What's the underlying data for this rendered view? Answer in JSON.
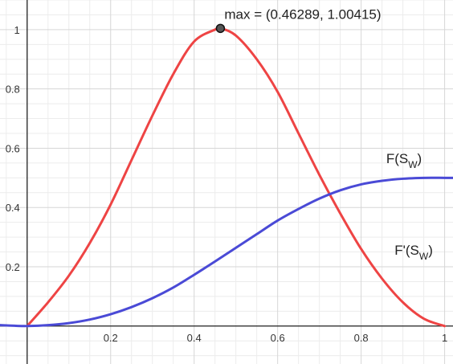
{
  "chart_data": {
    "type": "line",
    "xlim": [
      -0.065,
      1.02
    ],
    "ylim": [
      -0.128,
      1.1
    ],
    "grid": true,
    "x_ticks": [
      {
        "value": 0.2,
        "label": "0.2"
      },
      {
        "value": 0.4,
        "label": "0.4"
      },
      {
        "value": 0.6,
        "label": "0.6"
      },
      {
        "value": 0.8,
        "label": "0.8"
      },
      {
        "value": 1.0,
        "label": "1"
      }
    ],
    "y_ticks": [
      {
        "value": 0.2,
        "label": "0.2"
      },
      {
        "value": 0.4,
        "label": "0.4"
      },
      {
        "value": 0.6,
        "label": "0.6"
      },
      {
        "value": 0.8,
        "label": "0.8"
      },
      {
        "value": 1.0,
        "label": "1"
      }
    ],
    "series": [
      {
        "name": "F'(S_W)",
        "name_main": "F'(S",
        "name_sub": "W",
        "name_close": ")",
        "color": "#ee4444",
        "x": [
          0,
          0.05,
          0.1,
          0.15,
          0.2,
          0.25,
          0.3,
          0.35,
          0.4,
          0.45,
          0.46289,
          0.5,
          0.55,
          0.6,
          0.65,
          0.7,
          0.75,
          0.8,
          0.85,
          0.9,
          0.95,
          1.0
        ],
        "y": [
          0,
          0.08,
          0.17,
          0.28,
          0.41,
          0.56,
          0.71,
          0.85,
          0.96,
          1.0,
          1.00415,
          0.98,
          0.9,
          0.79,
          0.65,
          0.51,
          0.38,
          0.26,
          0.16,
          0.08,
          0.025,
          0
        ]
      },
      {
        "name": "F(S_W)",
        "name_main": "F(S",
        "name_sub": "W",
        "name_close": ")",
        "color": "#4a4ad6",
        "x": [
          -0.065,
          -0.03,
          0,
          0.05,
          0.1,
          0.15,
          0.2,
          0.25,
          0.3,
          0.35,
          0.4,
          0.45,
          0.5,
          0.55,
          0.6,
          0.65,
          0.7,
          0.75,
          0.8,
          0.85,
          0.9,
          0.95,
          1.0,
          1.02
        ],
        "y": [
          0.003,
          0.001,
          0,
          0.003,
          0.01,
          0.022,
          0.04,
          0.064,
          0.094,
          0.13,
          0.173,
          0.218,
          0.264,
          0.31,
          0.356,
          0.395,
          0.43,
          0.458,
          0.478,
          0.49,
          0.497,
          0.5,
          0.5,
          0.5
        ]
      }
    ],
    "annotations": [
      {
        "text": "max = (0.46289, 1.00415)",
        "x": 0.46289,
        "y": 1.00415,
        "marker": "point"
      }
    ]
  }
}
